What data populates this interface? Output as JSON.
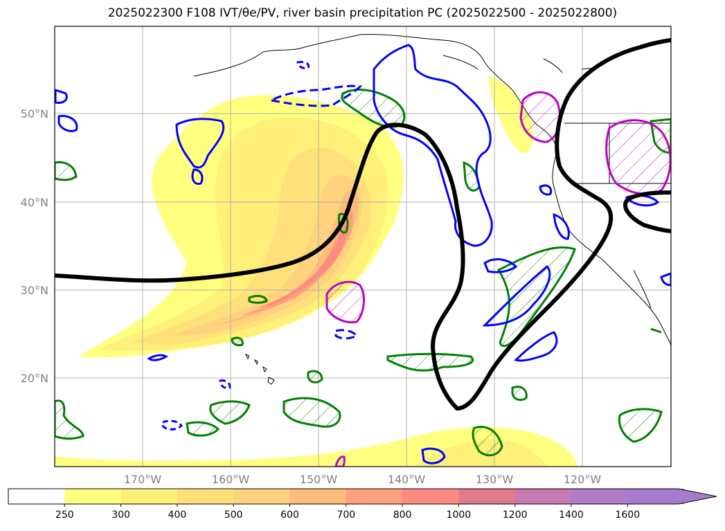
{
  "title": "2025022300 F108 IVT/θe/PV, river basin precipitation PC (2025022500 - 2025022800)",
  "lat_labels": [
    "50°N",
    "40°N",
    "30°N",
    "20°N"
  ],
  "lon_labels": [
    "170°W",
    "160°W",
    "150°W",
    "140°W",
    "130°W",
    "120°W"
  ],
  "colorbar": {
    "ticks": [
      "250",
      "300",
      "400",
      "500",
      "600",
      "700",
      "800",
      "1000",
      "1200",
      "1400",
      "1600"
    ],
    "colors": [
      "#ffffff",
      "#ffff80",
      "#fff07a",
      "#ffe07a",
      "#ffd27e",
      "#ffbb7c",
      "#ffa07c",
      "#ff8a80",
      "#e07a8c",
      "#c87ab4",
      "#b07ac4",
      "#a77bcb"
    ]
  },
  "colors": {
    "contour_black": "#000000",
    "contour_blue": "#0000ff",
    "contour_green": "#008000",
    "contour_magenta": "#c000c0",
    "grid": "#b0b0b0",
    "coast": "#000000"
  }
}
